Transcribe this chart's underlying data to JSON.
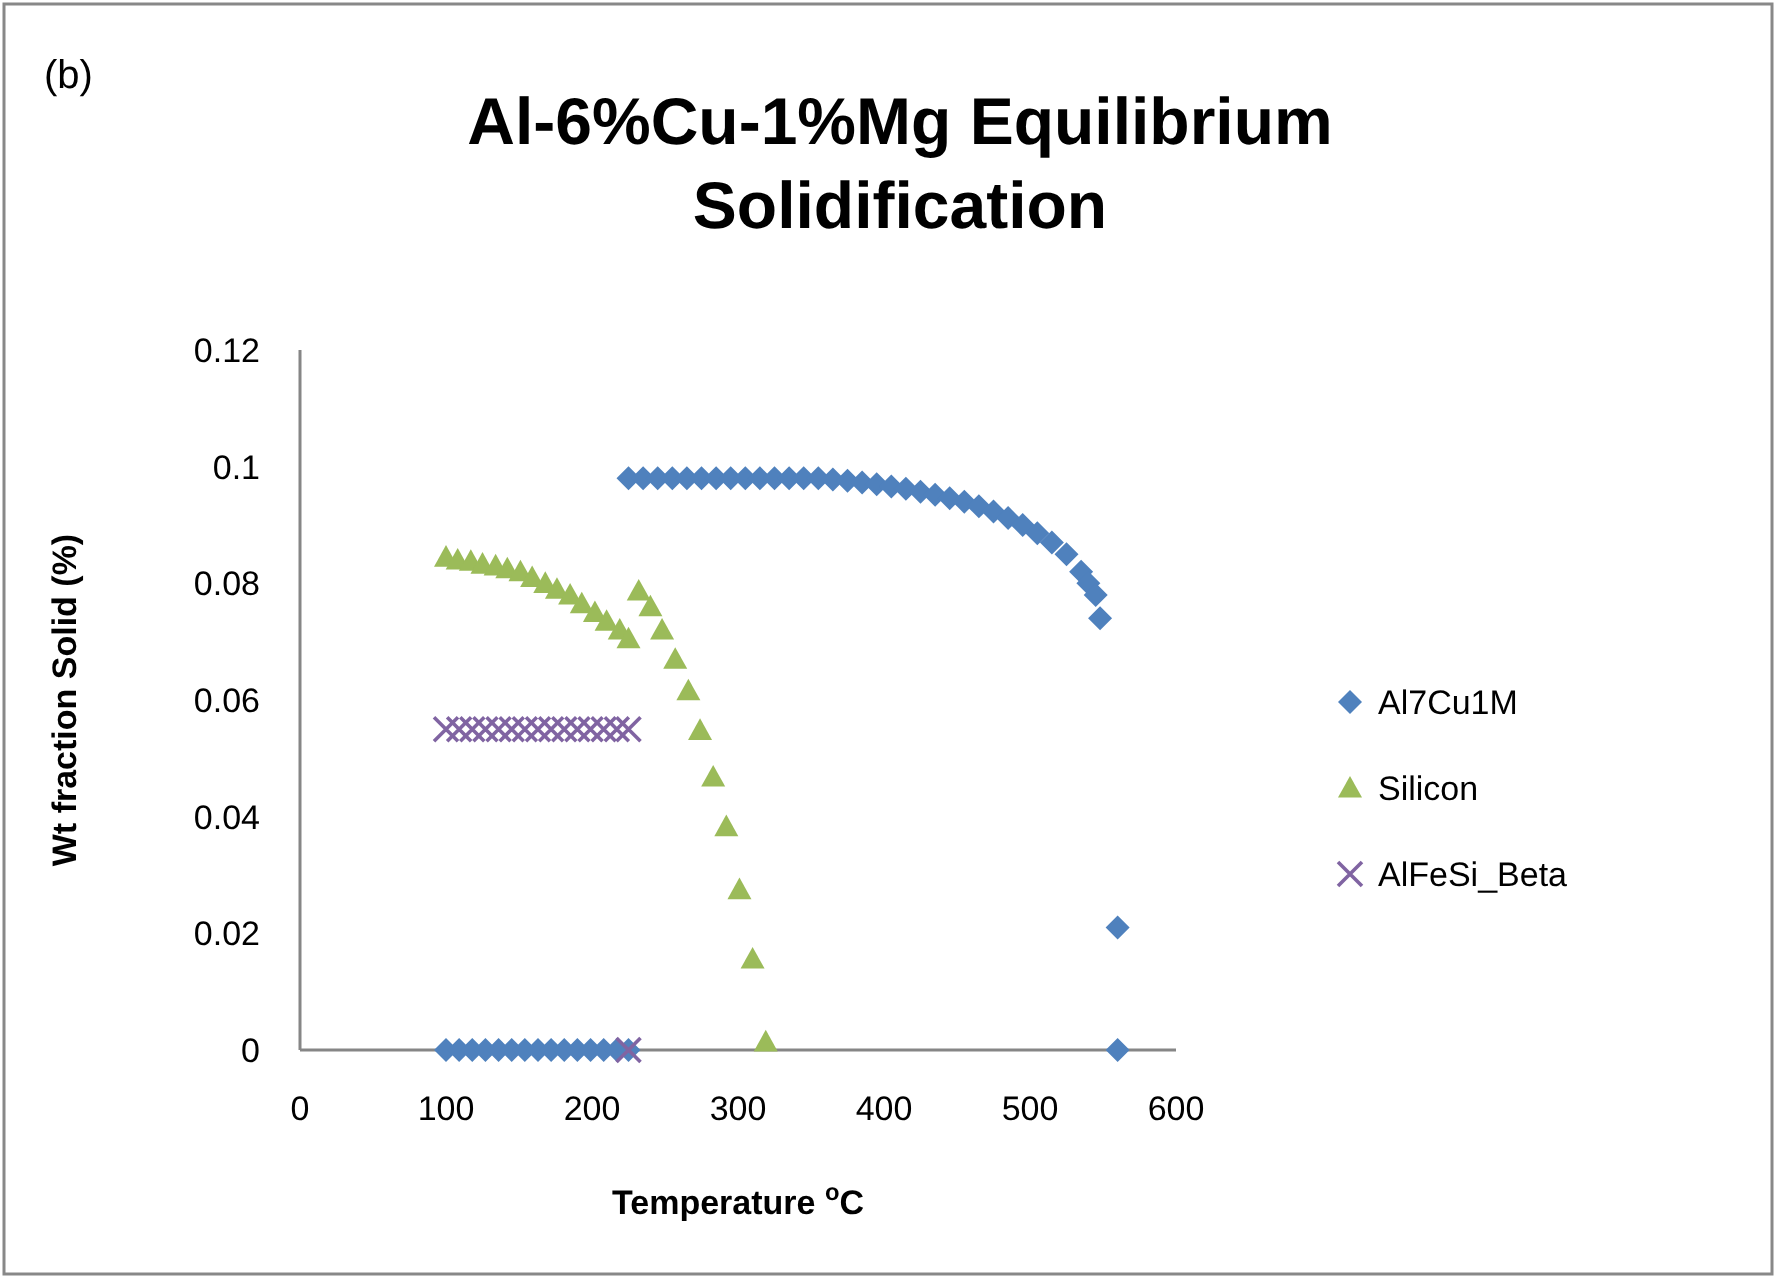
{
  "chart_data": {
    "type": "scatter",
    "title": "Al-6%Cu-1%Mg Equilibrium Solidification",
    "xlabel": "Temperature $^{o}$C",
    "ylabel": "Wt fraction Solid (%)",
    "annotations": [
      "(b)"
    ],
    "xlim": [
      0,
      600
    ],
    "xticks": [
      0,
      100,
      200,
      300,
      400,
      500,
      600
    ],
    "ylim": [
      0,
      0.12
    ],
    "yticks": [
      0,
      0.02,
      0.04,
      0.06,
      0.08,
      0.1,
      0.12
    ],
    "grid": false,
    "legend": "right",
    "series": [
      {
        "name": "Al7Cu1M",
        "color": "#4f81bd",
        "marker": "diamond",
        "x": [
          100,
          109,
          118,
          127,
          136,
          145,
          154,
          163,
          172,
          181,
          190,
          199,
          208,
          217,
          225,
          225,
          235,
          245,
          255,
          265,
          275,
          285,
          295,
          305,
          315,
          325,
          335,
          345,
          355,
          365,
          375,
          385,
          395,
          405,
          415,
          425,
          435,
          445,
          455,
          465,
          475,
          485,
          495,
          505,
          515,
          525,
          535,
          540,
          545,
          548,
          560,
          560
        ],
        "values": [
          0,
          0,
          0,
          0,
          0,
          0,
          0,
          0,
          0,
          0,
          0,
          0,
          0,
          0,
          0,
          0.098,
          0.098,
          0.098,
          0.098,
          0.098,
          0.098,
          0.098,
          0.098,
          0.098,
          0.098,
          0.098,
          0.098,
          0.098,
          0.098,
          0.0978,
          0.0976,
          0.0973,
          0.097,
          0.0966,
          0.0962,
          0.0957,
          0.0952,
          0.0946,
          0.094,
          0.0932,
          0.0923,
          0.0912,
          0.09,
          0.0886,
          0.087,
          0.085,
          0.082,
          0.08,
          0.078,
          0.074,
          0.021,
          0
        ]
      },
      {
        "name": "Silicon",
        "color": "#9bbb59",
        "marker": "triangle",
        "x": [
          100,
          108,
          117,
          125,
          134,
          142,
          151,
          159,
          168,
          176,
          185,
          193,
          202,
          210,
          219,
          225,
          232,
          240,
          248,
          257,
          266,
          274,
          283,
          292,
          301,
          310,
          319
        ],
        "values": [
          0.0845,
          0.084,
          0.0838,
          0.0833,
          0.083,
          0.0825,
          0.082,
          0.081,
          0.08,
          0.079,
          0.078,
          0.0765,
          0.075,
          0.0735,
          0.072,
          0.0705,
          0.0787,
          0.076,
          0.072,
          0.067,
          0.0616,
          0.0548,
          0.0468,
          0.0383,
          0.0275,
          0.0156,
          0.0014
        ]
      },
      {
        "name": "AlFeSi_Beta",
        "color": "#8064a2",
        "marker": "cross",
        "x": [
          100,
          109,
          118,
          127,
          136,
          145,
          154,
          163,
          172,
          181,
          190,
          199,
          208,
          217,
          225,
          225
        ],
        "values": [
          0.055,
          0.055,
          0.055,
          0.055,
          0.055,
          0.055,
          0.055,
          0.055,
          0.055,
          0.055,
          0.055,
          0.055,
          0.055,
          0.055,
          0.055,
          0
        ]
      }
    ]
  }
}
